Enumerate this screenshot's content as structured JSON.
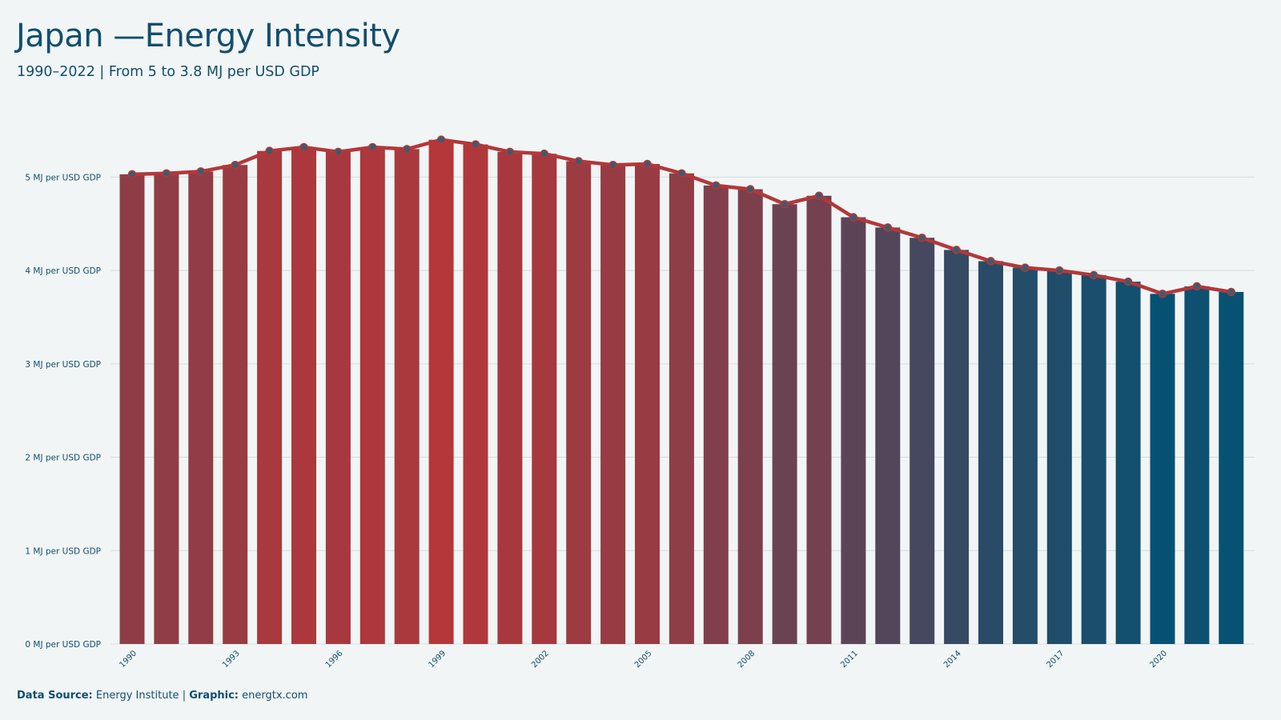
{
  "header": {
    "title": "Japan —Energy Intensity",
    "subtitle": "1990–2022 | From 5 to 3.8 MJ per USD GDP"
  },
  "footer": {
    "source_label": "Data Source:",
    "source_value": "Energy Institute",
    "separator": "|",
    "graphic_label": "Graphic:",
    "graphic_value": "energtx.com"
  },
  "colors": {
    "line": "#b2383a",
    "marker": "#3f5a6e",
    "bar_high": "#b5373a",
    "bar_low": "#055173",
    "grid": "#d4dede",
    "text": "#124e6e"
  },
  "chart_data": {
    "type": "bar",
    "overlay": "line",
    "title": "Japan —Energy Intensity",
    "subtitle": "1990–2022 | From 5 to 3.8 MJ per USD GDP",
    "x": [
      1990,
      1991,
      1992,
      1993,
      1994,
      1995,
      1996,
      1997,
      1998,
      1999,
      2000,
      2001,
      2002,
      2003,
      2004,
      2005,
      2006,
      2007,
      2008,
      2009,
      2010,
      2011,
      2012,
      2013,
      2014,
      2015,
      2016,
      2017,
      2018,
      2019,
      2020,
      2021,
      2022
    ],
    "values": [
      5.03,
      5.04,
      5.06,
      5.13,
      5.28,
      5.32,
      5.27,
      5.32,
      5.3,
      5.4,
      5.35,
      5.27,
      5.25,
      5.17,
      5.13,
      5.14,
      5.04,
      4.91,
      4.87,
      4.71,
      4.8,
      4.57,
      4.46,
      4.35,
      4.22,
      4.1,
      4.03,
      4.0,
      3.95,
      3.88,
      3.75,
      3.83,
      3.77
    ],
    "x_tick_labels": [
      "1990",
      "1993",
      "1996",
      "1999",
      "2002",
      "2005",
      "2008",
      "2011",
      "2014",
      "2017",
      "2020"
    ],
    "y_ticks": [
      0,
      1,
      2,
      3,
      4,
      5
    ],
    "y_tick_labels": [
      "0 MJ per USD GDP",
      "1 MJ per USD GDP",
      "2 MJ per USD GDP",
      "3 MJ per USD GDP",
      "4 MJ per USD GDP",
      "5 MJ per USD GDP"
    ],
    "ylim": [
      0,
      5.5
    ],
    "grid": "horizontal",
    "legend": "none",
    "xlabel": "",
    "ylabel": ""
  }
}
